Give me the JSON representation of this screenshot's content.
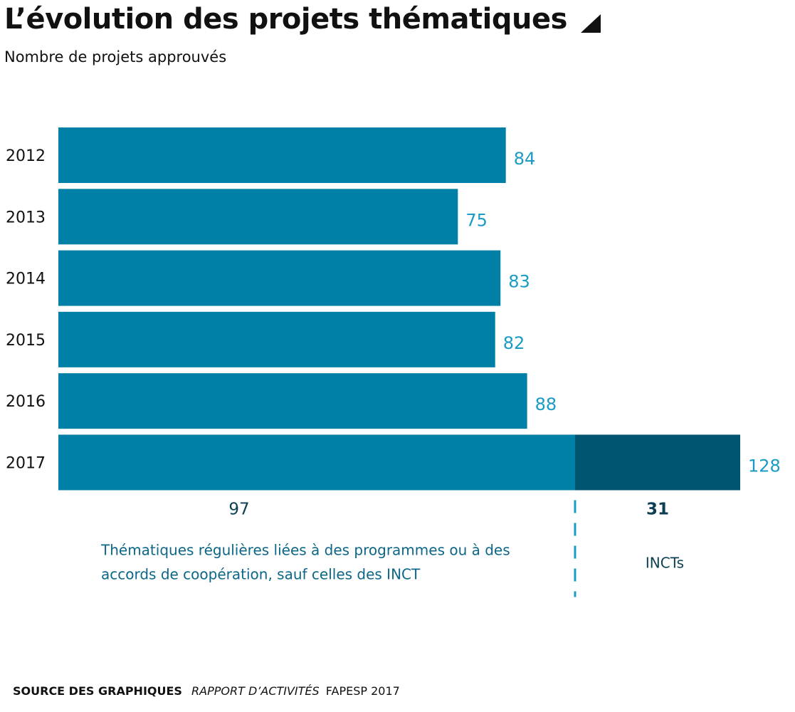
{
  "title": "L’évolution des projets thématiques",
  "subtitle": "Nombre de projets approuvés",
  "footer": {
    "source_label": "SOURCE DES GRAPHIQUES",
    "report_label": "RAPPORT D’ACTIVITÉS",
    "report_suffix": "FAPESP 2017"
  },
  "colors": {
    "bar_main": "#0080a6",
    "bar_inct": "#005670",
    "value_label": "#1a9bc4",
    "annotation": "#0b6688",
    "dark_label": "#0d3f52"
  },
  "chart_data": {
    "type": "bar",
    "orientation": "horizontal",
    "stacked": true,
    "categories": [
      "2012",
      "2013",
      "2014",
      "2015",
      "2016",
      "2017"
    ],
    "series": [
      {
        "values": [
          84,
          75,
          83,
          82,
          88,
          97
        ]
      },
      {
        "values": [
          0,
          0,
          0,
          0,
          0,
          31
        ]
      }
    ],
    "totals": [
      "84",
      "75",
      "83",
      "82",
      "88",
      "128"
    ],
    "segment_labels": {
      "main_2017": "97",
      "inct_2017": "31"
    },
    "annotations": {
      "main": [
        "Thématiques régulières liées à des programmes ou à des",
        "accords de coopération, sauf celles des INCT"
      ],
      "inct": "INCTs"
    },
    "xlim": [
      0,
      128
    ],
    "grid": false
  }
}
